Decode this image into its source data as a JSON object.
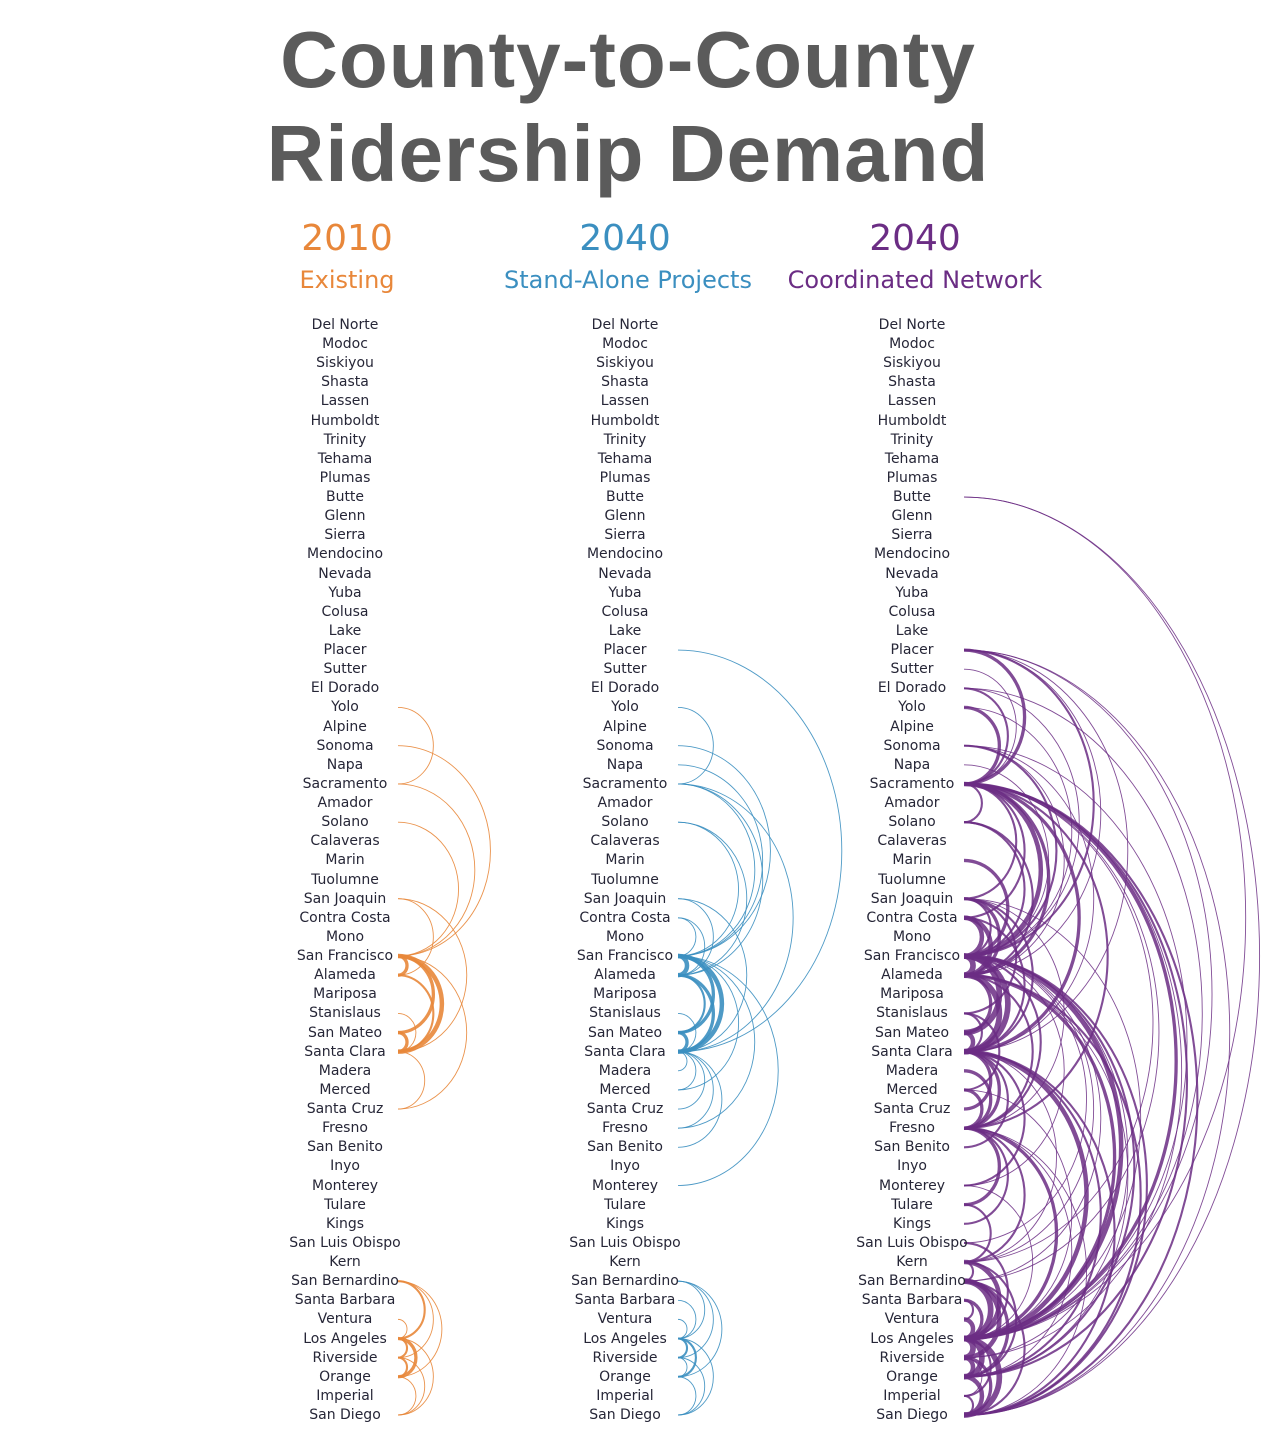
{
  "title_line1": "County-to-County",
  "title_line2": "Ridership Demand",
  "counties": [
    "Del Norte",
    "Modoc",
    "Siskiyou",
    "Shasta",
    "Lassen",
    "Humboldt",
    "Trinity",
    "Tehama",
    "Plumas",
    "Butte",
    "Glenn",
    "Sierra",
    "Mendocino",
    "Nevada",
    "Yuba",
    "Colusa",
    "Lake",
    "Placer",
    "Sutter",
    "El Dorado",
    "Yolo",
    "Alpine",
    "Sonoma",
    "Napa",
    "Sacramento",
    "Amador",
    "Solano",
    "Calaveras",
    "Marin",
    "Tuolumne",
    "San Joaquin",
    "Contra Costa",
    "Mono",
    "San Francisco",
    "Alameda",
    "Mariposa",
    "Stanislaus",
    "San Mateo",
    "Santa Clara",
    "Madera",
    "Merced",
    "Santa Cruz",
    "Fresno",
    "San Benito",
    "Inyo",
    "Monterey",
    "Tulare",
    "Kings",
    "San Luis Obispo",
    "Kern",
    "San Bernardino",
    "Santa Barbara",
    "Ventura",
    "Los Angeles",
    "Riverside",
    "Orange",
    "Imperial",
    "San Diego"
  ],
  "panels": [
    {
      "year": "2010",
      "subtitle": "Existing",
      "color": "#e8873a",
      "links": [
        [
          20,
          24,
          1
        ],
        [
          22,
          33,
          1
        ],
        [
          24,
          33,
          1
        ],
        [
          26,
          33,
          1
        ],
        [
          30,
          34,
          1
        ],
        [
          30,
          38,
          1
        ],
        [
          33,
          34,
          3
        ],
        [
          33,
          37,
          3
        ],
        [
          33,
          38,
          4
        ],
        [
          34,
          38,
          2
        ],
        [
          36,
          38,
          1
        ],
        [
          37,
          38,
          3
        ],
        [
          33,
          41,
          1
        ],
        [
          38,
          41,
          1
        ],
        [
          50,
          53,
          2
        ],
        [
          50,
          55,
          1
        ],
        [
          50,
          54,
          1
        ],
        [
          52,
          53,
          1
        ],
        [
          53,
          54,
          2
        ],
        [
          53,
          55,
          3
        ],
        [
          54,
          55,
          2
        ],
        [
          53,
          57,
          1
        ],
        [
          55,
          57,
          1
        ],
        [
          54,
          57,
          1
        ]
      ]
    },
    {
      "year": "2040",
      "subtitle": "Stand-Alone Projects",
      "color": "#3b8fc0",
      "links": [
        [
          17,
          38,
          1
        ],
        [
          20,
          24,
          1
        ],
        [
          22,
          33,
          1
        ],
        [
          23,
          33,
          1
        ],
        [
          24,
          33,
          1
        ],
        [
          24,
          34,
          1
        ],
        [
          24,
          38,
          1
        ],
        [
          26,
          33,
          1
        ],
        [
          26,
          34,
          1
        ],
        [
          31,
          33,
          1
        ],
        [
          31,
          34,
          1
        ],
        [
          33,
          34,
          4
        ],
        [
          33,
          37,
          3
        ],
        [
          33,
          38,
          4
        ],
        [
          34,
          37,
          2
        ],
        [
          34,
          38,
          3
        ],
        [
          37,
          38,
          3
        ],
        [
          30,
          38,
          1
        ],
        [
          30,
          34,
          1
        ],
        [
          36,
          38,
          1
        ],
        [
          39,
          38,
          1
        ],
        [
          40,
          38,
          1
        ],
        [
          40,
          33,
          1
        ],
        [
          41,
          38,
          1
        ],
        [
          42,
          38,
          1
        ],
        [
          42,
          33,
          1
        ],
        [
          43,
          38,
          1
        ],
        [
          33,
          45,
          1
        ],
        [
          50,
          53,
          1
        ],
        [
          50,
          55,
          1
        ],
        [
          50,
          54,
          1
        ],
        [
          52,
          53,
          1
        ],
        [
          53,
          54,
          2
        ],
        [
          53,
          55,
          2
        ],
        [
          54,
          55,
          1
        ],
        [
          53,
          57,
          1
        ],
        [
          55,
          57,
          1
        ],
        [
          54,
          57,
          1
        ],
        [
          51,
          53,
          1
        ]
      ]
    },
    {
      "year": "2040",
      "subtitle": "Coordinated Network",
      "color": "#6b2d84",
      "links": [
        [
          9,
          57,
          1
        ],
        [
          9,
          53,
          1
        ],
        [
          17,
          24,
          3
        ],
        [
          17,
          33,
          2
        ],
        [
          17,
          34,
          1
        ],
        [
          17,
          38,
          1
        ],
        [
          17,
          53,
          1
        ],
        [
          17,
          57,
          1
        ],
        [
          18,
          24,
          1
        ],
        [
          19,
          24,
          2
        ],
        [
          19,
          33,
          1
        ],
        [
          19,
          53,
          1
        ],
        [
          20,
          24,
          3
        ],
        [
          20,
          33,
          1
        ],
        [
          22,
          33,
          2
        ],
        [
          22,
          34,
          1
        ],
        [
          22,
          38,
          1
        ],
        [
          22,
          53,
          1
        ],
        [
          23,
          33,
          1
        ],
        [
          24,
          33,
          4
        ],
        [
          24,
          34,
          3
        ],
        [
          24,
          38,
          3
        ],
        [
          24,
          31,
          2
        ],
        [
          24,
          30,
          2
        ],
        [
          24,
          26,
          2
        ],
        [
          24,
          42,
          2
        ],
        [
          24,
          53,
          3
        ],
        [
          24,
          55,
          2
        ],
        [
          24,
          57,
          2
        ],
        [
          24,
          49,
          1
        ],
        [
          24,
          54,
          1
        ],
        [
          24,
          50,
          1
        ],
        [
          26,
          33,
          2
        ],
        [
          26,
          34,
          2
        ],
        [
          28,
          33,
          3
        ],
        [
          30,
          34,
          3
        ],
        [
          30,
          38,
          2
        ],
        [
          30,
          33,
          2
        ],
        [
          30,
          36,
          2
        ],
        [
          30,
          42,
          1
        ],
        [
          30,
          53,
          1
        ],
        [
          31,
          33,
          4
        ],
        [
          31,
          34,
          4
        ],
        [
          31,
          38,
          2
        ],
        [
          33,
          34,
          5
        ],
        [
          33,
          37,
          5
        ],
        [
          33,
          38,
          5
        ],
        [
          33,
          42,
          2
        ],
        [
          33,
          53,
          4
        ],
        [
          33,
          55,
          2
        ],
        [
          33,
          57,
          2
        ],
        [
          33,
          49,
          1
        ],
        [
          33,
          54,
          1
        ],
        [
          33,
          50,
          1
        ],
        [
          33,
          48,
          1
        ],
        [
          33,
          45,
          1
        ],
        [
          34,
          37,
          3
        ],
        [
          34,
          38,
          5
        ],
        [
          34,
          42,
          2
        ],
        [
          34,
          53,
          3
        ],
        [
          34,
          57,
          2
        ],
        [
          34,
          55,
          1
        ],
        [
          36,
          38,
          2
        ],
        [
          36,
          40,
          2
        ],
        [
          37,
          38,
          4
        ],
        [
          38,
          41,
          3
        ],
        [
          38,
          43,
          2
        ],
        [
          38,
          45,
          2
        ],
        [
          38,
          42,
          3
        ],
        [
          38,
          53,
          4
        ],
        [
          38,
          55,
          2
        ],
        [
          38,
          57,
          2
        ],
        [
          38,
          49,
          1
        ],
        [
          39,
          42,
          3
        ],
        [
          40,
          42,
          3
        ],
        [
          40,
          53,
          1
        ],
        [
          42,
          46,
          3
        ],
        [
          42,
          47,
          2
        ],
        [
          42,
          49,
          2
        ],
        [
          42,
          53,
          3
        ],
        [
          42,
          55,
          1
        ],
        [
          42,
          57,
          1
        ],
        [
          45,
          53,
          1
        ],
        [
          46,
          49,
          2
        ],
        [
          48,
          53,
          2
        ],
        [
          49,
          53,
          4
        ],
        [
          49,
          50,
          2
        ],
        [
          49,
          55,
          2
        ],
        [
          50,
          53,
          5
        ],
        [
          50,
          54,
          4
        ],
        [
          50,
          55,
          3
        ],
        [
          50,
          57,
          2
        ],
        [
          51,
          52,
          2
        ],
        [
          51,
          53,
          3
        ],
        [
          52,
          53,
          4
        ],
        [
          53,
          54,
          5
        ],
        [
          53,
          55,
          5
        ],
        [
          53,
          56,
          2
        ],
        [
          53,
          57,
          5
        ],
        [
          54,
          55,
          4
        ],
        [
          54,
          57,
          3
        ],
        [
          55,
          57,
          4
        ],
        [
          56,
          57,
          2
        ],
        [
          54,
          56,
          1
        ]
      ]
    }
  ]
}
